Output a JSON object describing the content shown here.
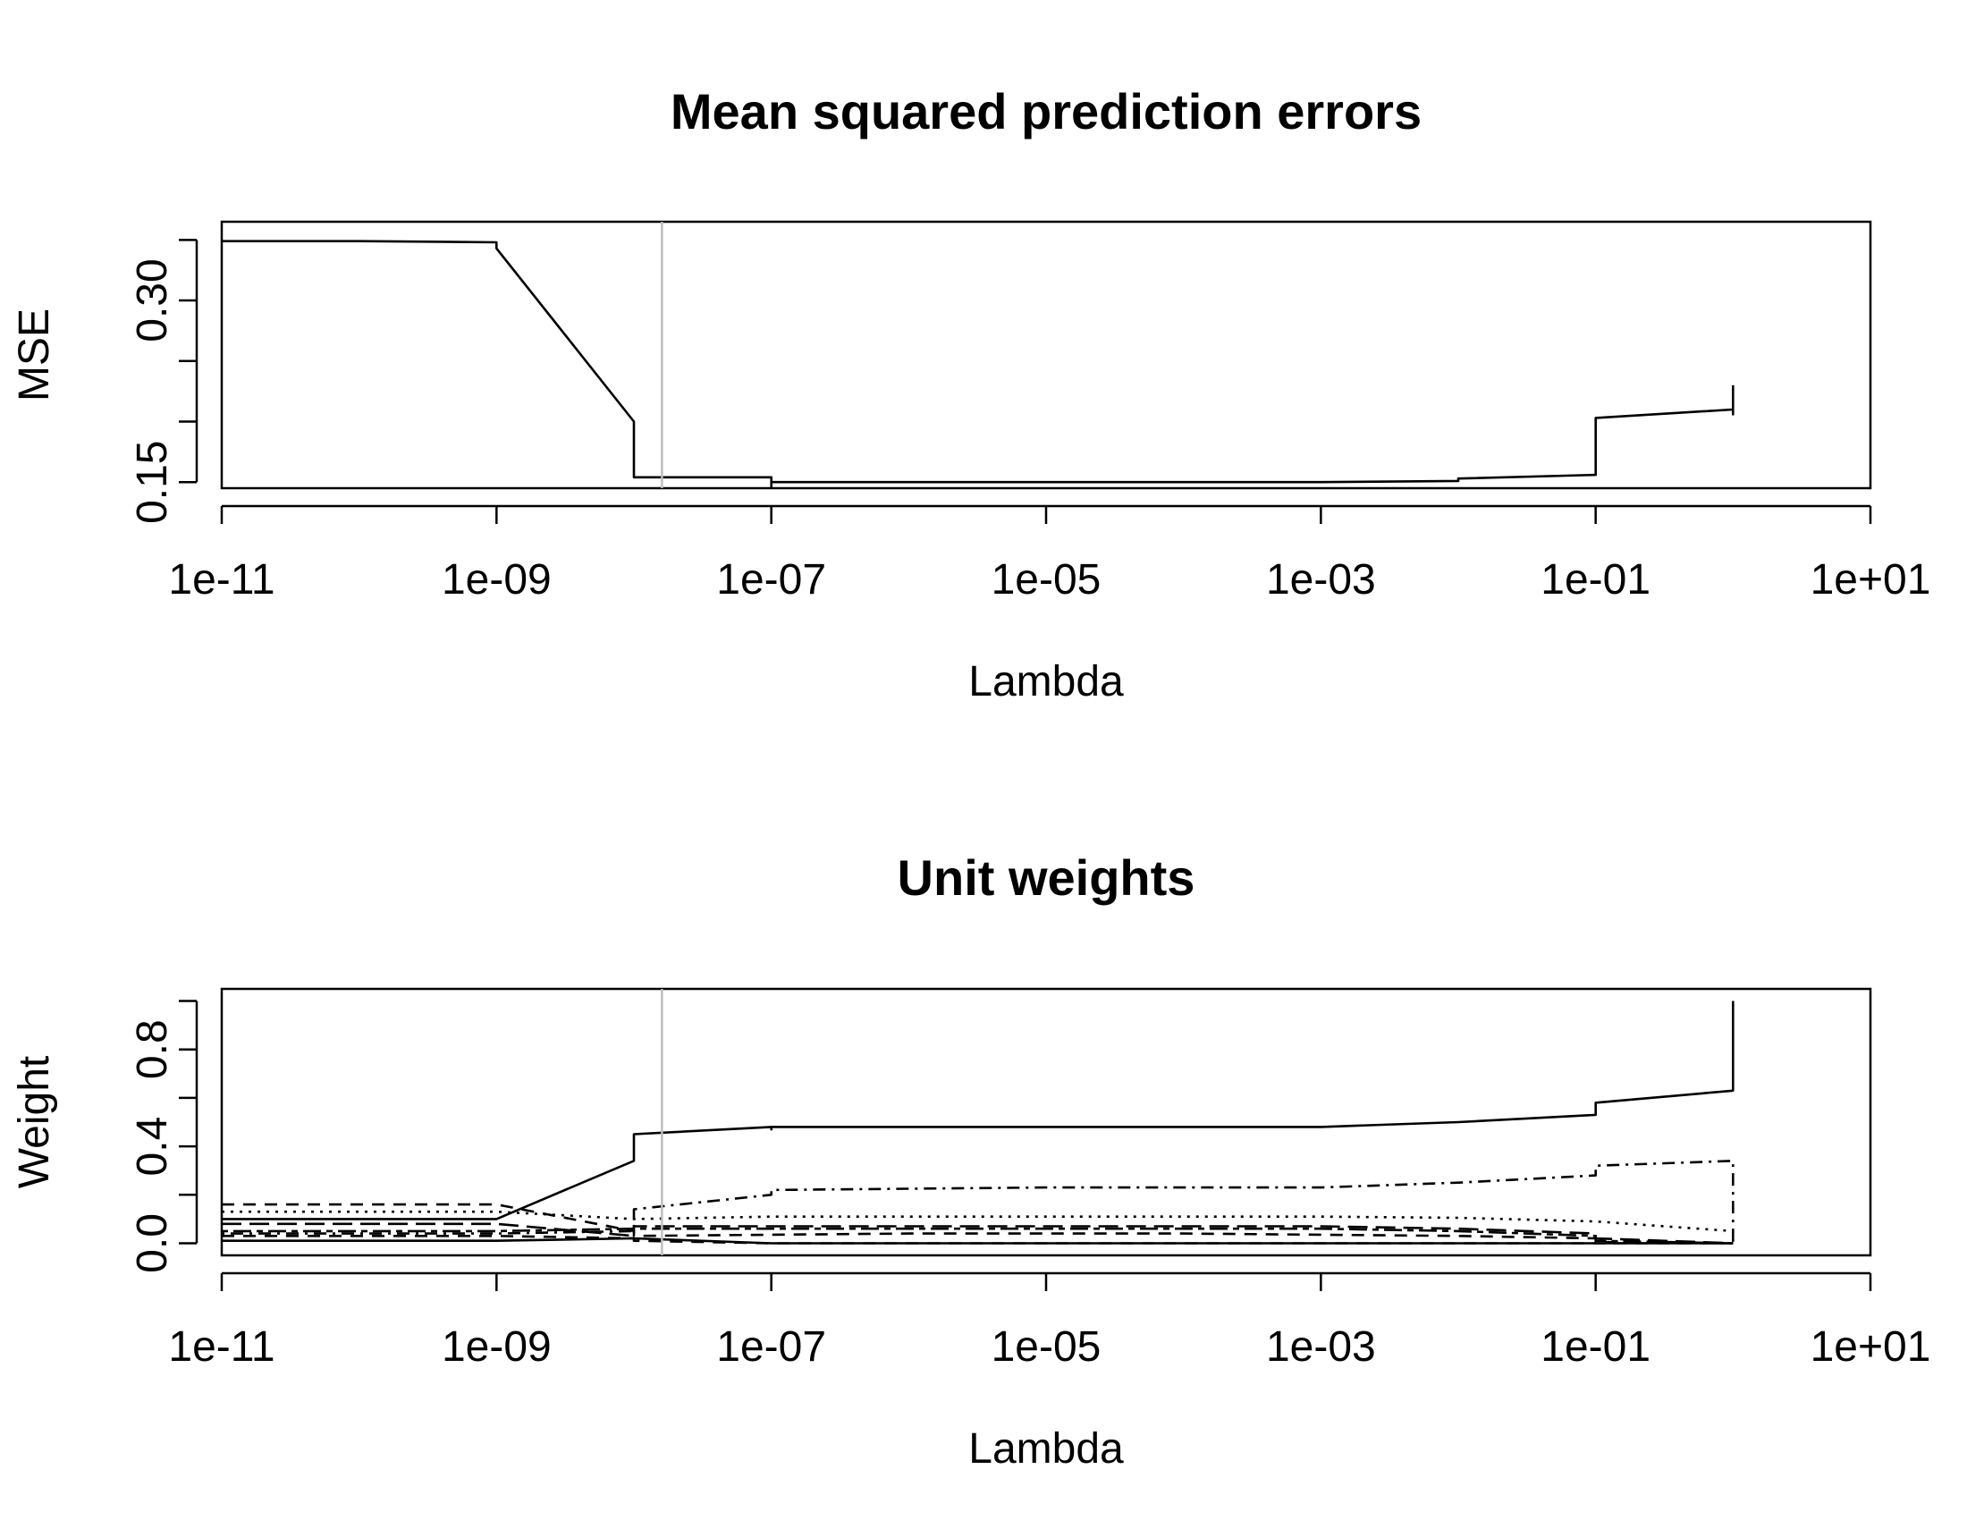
{
  "chart_data": [
    {
      "type": "line",
      "title": "Mean squared prediction errors",
      "xlabel": "Lambda",
      "ylabel": "MSE",
      "x_scale": "log10",
      "xlim": [
        "1e-11",
        "1e+01"
      ],
      "ylim": [
        0.145,
        0.365
      ],
      "x_ticks": [
        "1e-11",
        "1e-09",
        "1e-07",
        "1e-05",
        "1e-03",
        "1e-01",
        "1e+01"
      ],
      "y_ticks": [
        "0.15",
        "0.30"
      ],
      "y_tick_values": [
        0.15,
        0.3
      ],
      "minor_y_ticks": [
        0.15,
        0.2,
        0.25,
        0.3,
        0.35
      ],
      "selected_lambda": "1.6e-08",
      "series": [
        {
          "line_style": "solid",
          "x": [
            "1e-11",
            "1e-10",
            "1e-09.6",
            "1e-09.3",
            "1e-09.1",
            "1e-08.85",
            "1e-08.75",
            "1e-08.55",
            "1e-08.38",
            "1e-08.2",
            "1e-08.0",
            "1e-07.9",
            "1e-07.8",
            "1e-07.7",
            "1e-07.55",
            "1e-07.35",
            "1e-07.2",
            "1e-07.1",
            "1e-07.0",
            "1e-06",
            "1e-05",
            "1e-04",
            "1e-03",
            "1e-02.5",
            "1e-02",
            "1e-01.8",
            "1e-01.5",
            "1e-01.35",
            "1e-01.2",
            "1e-01",
            "1e-00.5",
            "1e-00.3",
            "1e-00.1",
            "1e+00",
            "1e+00.2",
            "1e+00.35",
            "1e+00.5",
            "1e+00.9"
          ],
          "values": [
            0.349,
            0.349,
            0.348,
            0.346,
            0.343,
            0.2,
            0.199,
            0.194,
            0.154,
            0.155,
            0.154,
            0.154,
            0.146,
            0.146,
            0.148,
            0.148,
            0.146,
            0.148,
            0.15,
            0.15,
            0.15,
            0.15,
            0.15,
            0.151,
            0.153,
            0.156,
            0.166,
            0.178,
            0.195,
            0.203,
            0.21,
            0.213,
            0.209,
            0.206,
            0.211,
            0.23,
            0.23,
            0.23
          ]
        }
      ]
    },
    {
      "type": "line",
      "title": "Unit weights",
      "xlabel": "Lambda",
      "ylabel": "Weight",
      "x_scale": "log10",
      "xlim": [
        "1e-11",
        "1e+01"
      ],
      "ylim": [
        -0.05,
        1.05
      ],
      "x_ticks": [
        "1e-11",
        "1e-09",
        "1e-07",
        "1e-05",
        "1e-03",
        "1e-01",
        "1e+01"
      ],
      "y_ticks": [
        "0.0",
        "0.4",
        "0.8"
      ],
      "y_tick_values": [
        0.0,
        0.4,
        0.8
      ],
      "minor_y_ticks": [
        0.0,
        0.2,
        0.4,
        0.6,
        0.8,
        1.0
      ],
      "selected_lambda": "1.6e-08",
      "series": [
        {
          "line_style": "solid",
          "x": [
            "1e-11",
            "1e-09.1",
            "1e-08.8",
            "1e-08.6",
            "1e-08.4",
            "1e-08.2",
            "1e-08.0",
            "1e-07.8",
            "1e-07.6",
            "1e-07.2",
            "1e-07",
            "1e-05",
            "1e-03",
            "1e-02",
            "1e-01.5",
            "1e-01.2",
            "1e-01",
            "1e-00.6",
            "1e-00.3",
            "1e+00",
            "1e+00.2",
            "1e+00.35",
            "1e+00.9"
          ],
          "values": [
            0.1,
            0.1,
            0.34,
            0.35,
            0.4,
            0.41,
            0.45,
            0.48,
            0.48,
            0.47,
            0.48,
            0.48,
            0.48,
            0.5,
            0.53,
            0.56,
            0.58,
            0.63,
            0.68,
            0.76,
            0.87,
            1.0,
            1.0
          ]
        },
        {
          "line_style": "dashdot",
          "x": [
            "1e-11",
            "1e-09",
            "1e-08.5",
            "1e-08.1",
            "1e-07.7",
            "1e-07",
            "1e-05",
            "1e-03",
            "1e-02",
            "1e-01.5",
            "1e-01",
            "1e-00.5",
            "1e-00.3",
            "1e-00.1",
            "1e+00",
            "1e+00.2",
            "1e+00.35",
            "1e+00.9"
          ],
          "values": [
            0.04,
            0.04,
            0.05,
            0.14,
            0.2,
            0.22,
            0.23,
            0.23,
            0.25,
            0.28,
            0.32,
            0.34,
            0.33,
            0.27,
            0.22,
            0.1,
            0.0,
            0.0
          ]
        },
        {
          "line_style": "dashed",
          "x": [
            "1e-11",
            "1e-09.1",
            "1e-08.8",
            "1e-08",
            "1e-06",
            "1e-04",
            "1e-02",
            "1e-01.5",
            "1e-01",
            "1e-00.5",
            "1e-00.3",
            "1e+00.9"
          ],
          "values": [
            0.16,
            0.16,
            0.05,
            0.03,
            0.04,
            0.04,
            0.03,
            0.02,
            0.005,
            0.0,
            0.0,
            0.0
          ]
        },
        {
          "line_style": "dotted",
          "x": [
            "1e-11",
            "1e-09.1",
            "1e-08.8",
            "1e-07",
            "1e-03",
            "1e-02",
            "1e-01",
            "1e-00.6",
            "1e-00.3",
            "1e+00.9"
          ],
          "values": [
            0.13,
            0.13,
            0.1,
            0.11,
            0.11,
            0.105,
            0.09,
            0.05,
            0.0,
            0.0
          ]
        },
        {
          "line_style": "longdash",
          "x": [
            "1e-11",
            "1e-09.1",
            "1e-08.9",
            "1e-08",
            "1e-06",
            "1e-03",
            "1e-02",
            "1e-01.5",
            "1e-01",
            "1e-00.6",
            "1e+00.9"
          ],
          "values": [
            0.08,
            0.08,
            0.03,
            0.07,
            0.07,
            0.07,
            0.06,
            0.04,
            0.02,
            0.0,
            0.0
          ]
        },
        {
          "line_style": "twodash",
          "x": [
            "1e-11",
            "1e-09",
            "1e-08",
            "1e-06",
            "1e-03",
            "1e-02",
            "1e-01.5",
            "1e-01",
            "1e-00.6",
            "1e+00.9"
          ],
          "values": [
            0.05,
            0.05,
            0.06,
            0.06,
            0.06,
            0.05,
            0.03,
            0.01,
            0.0,
            0.0
          ]
        },
        {
          "line_style": "solid",
          "x": [
            "1e-11",
            "1e-09",
            "1e-08.2",
            "1e-07.5",
            "1e-07",
            "1e+00.9"
          ],
          "values": [
            0.01,
            0.01,
            0.02,
            0.0,
            0.0,
            0.0
          ]
        },
        {
          "line_style": "dashed",
          "x": [
            "1e-11",
            "1e-09",
            "1e-08.5",
            "1e-08",
            "1e-07",
            "1e+00.9"
          ],
          "values": [
            0.03,
            0.03,
            0.02,
            0.01,
            0.0,
            0.0
          ]
        }
      ]
    }
  ]
}
